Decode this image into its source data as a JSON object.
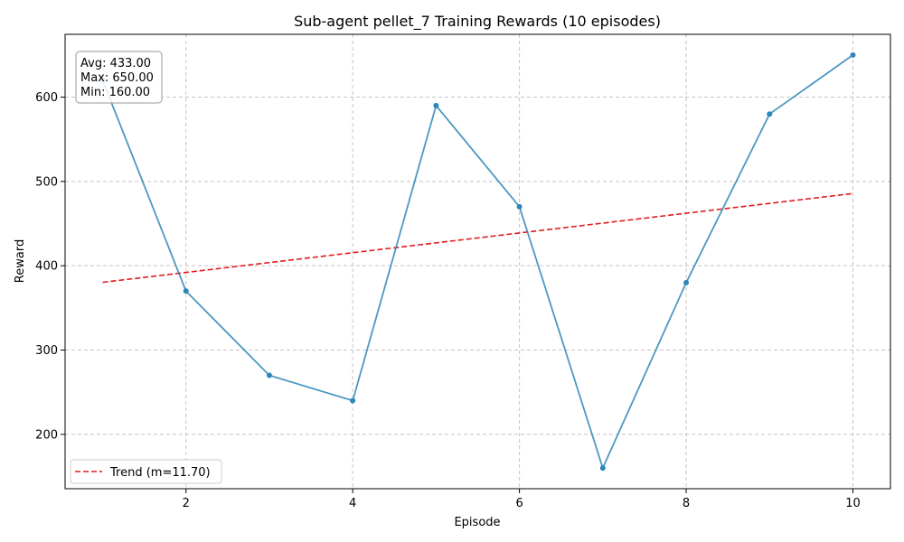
{
  "chart_data": {
    "type": "line",
    "title": "Sub-agent pellet_7 Training Rewards (10 episodes)",
    "xlabel": "Episode",
    "ylabel": "Reward",
    "xlim": [
      0.55,
      10.45
    ],
    "ylim": [
      135.5,
      674.5
    ],
    "xticks": [
      2,
      4,
      6,
      8,
      10
    ],
    "yticks": [
      200,
      300,
      400,
      500,
      600
    ],
    "grid": true,
    "series": [
      {
        "x": [
          1,
          2,
          3,
          4,
          5,
          6,
          7,
          8,
          9,
          10
        ],
        "values": [
          620,
          370,
          270,
          240,
          590,
          470,
          160,
          380,
          580,
          650
        ],
        "color": "#2e86b8",
        "style": "solid-markers"
      },
      {
        "name": "Trend (m=11.70)",
        "x": [
          1,
          10
        ],
        "values": [
          380.35,
          485.65
        ],
        "color": "#e41a1c",
        "style": "dashed"
      }
    ],
    "stats_box": [
      "Avg: 433.00",
      "Max: 650.00",
      "Min: 160.00"
    ],
    "legend_position": "lower-left"
  }
}
